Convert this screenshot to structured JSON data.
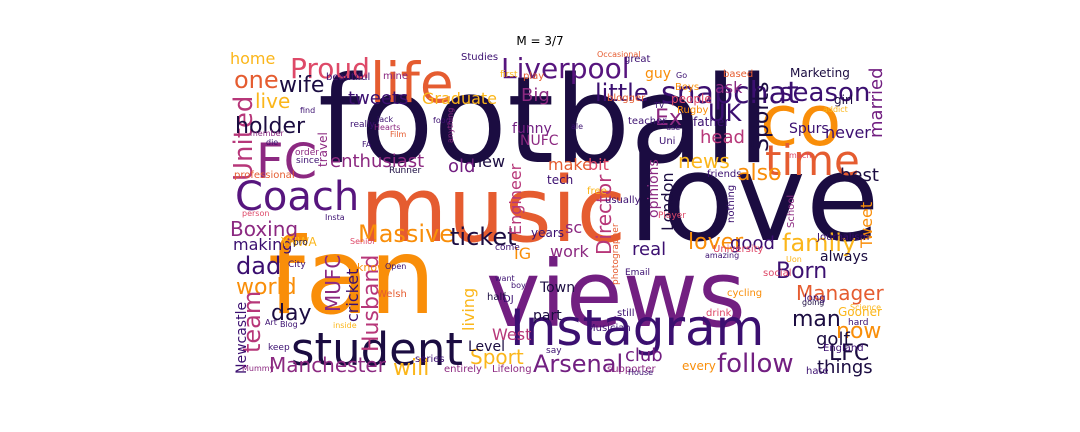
{
  "figure": {
    "title": "M = 3/7"
  },
  "palette": {
    "black": "#1b0c41",
    "deep_purple": "#3b0f70",
    "purple": "#57157e",
    "plum": "#721f81",
    "magenta": "#8c2981",
    "rose": "#b73779",
    "red": "#de4968",
    "orange_red": "#e55c30",
    "orange": "#f98e09",
    "gold": "#fbb61a",
    "yellow": "#f6d746"
  },
  "word_cloud": [
    {
      "text": "football",
      "color": "#1b0c41"
    },
    {
      "text": "love",
      "color": "#1b0c41"
    },
    {
      "text": "music",
      "color": "#e55c30"
    },
    {
      "text": "fan",
      "color": "#f98e09"
    },
    {
      "text": "views",
      "color": "#721f81"
    },
    {
      "text": "Instagram",
      "color": "#3b0f70"
    },
    {
      "text": "student",
      "color": "#1b0c41"
    },
    {
      "text": "Coach",
      "color": "#57157e"
    },
    {
      "text": "co",
      "color": "#f98e09"
    },
    {
      "text": "life",
      "color": "#e55c30"
    },
    {
      "text": "time",
      "color": "#e55c30"
    },
    {
      "text": "FC",
      "color": "#8c2981"
    },
    {
      "text": "snapchat",
      "color": "#3b0f70"
    },
    {
      "text": "Liverpool",
      "color": "#57157e"
    },
    {
      "text": "Proud",
      "color": "#de4968"
    },
    {
      "text": "season",
      "color": "#3b0f70"
    },
    {
      "text": "one",
      "color": "#e55c30"
    },
    {
      "text": "wife",
      "color": "#1b0c41"
    },
    {
      "text": "United",
      "color": "#b73779"
    },
    {
      "text": "live",
      "color": "#fbb61a"
    },
    {
      "text": "holder",
      "color": "#1b0c41"
    },
    {
      "text": "home",
      "color": "#fbb61a"
    },
    {
      "text": "tweets",
      "color": "#3b0f70"
    },
    {
      "text": "Graduate",
      "color": "#fbb61a"
    },
    {
      "text": "little",
      "color": "#3b0f70"
    },
    {
      "text": "Big",
      "color": "#8c2981"
    },
    {
      "text": "UK",
      "color": "#3b0f70"
    },
    {
      "text": "Ex",
      "color": "#8c2981"
    },
    {
      "text": "head",
      "color": "#b73779"
    },
    {
      "text": "Sports",
      "color": "#1b0c41"
    },
    {
      "text": "married",
      "color": "#721f81"
    },
    {
      "text": "never",
      "color": "#3b0f70"
    },
    {
      "text": "news",
      "color": "#fbb61a"
    },
    {
      "text": "also",
      "color": "#f98e09"
    },
    {
      "text": "best",
      "color": "#1b0c41"
    },
    {
      "text": "enthusiast",
      "color": "#8c2981"
    },
    {
      "text": "old",
      "color": "#721f81"
    },
    {
      "text": "new",
      "color": "#1b0c41"
    },
    {
      "text": "make",
      "color": "#e55c30"
    },
    {
      "text": "bit",
      "color": "#de4968"
    },
    {
      "text": "funny",
      "color": "#721f81"
    },
    {
      "text": "NUFC",
      "color": "#8c2981"
    },
    {
      "text": "Massive",
      "color": "#f98e09"
    },
    {
      "text": "ticket",
      "color": "#1b0c41"
    },
    {
      "text": "lover",
      "color": "#f98e09"
    },
    {
      "text": "good",
      "color": "#3b0f70"
    },
    {
      "text": "family",
      "color": "#fbb61a"
    },
    {
      "text": "Boxing",
      "color": "#8c2981"
    },
    {
      "text": "making",
      "color": "#3b0f70"
    },
    {
      "text": "dad",
      "color": "#3b0f70"
    },
    {
      "text": "world",
      "color": "#f98e09"
    },
    {
      "text": "day",
      "color": "#1b0c41"
    },
    {
      "text": "team",
      "color": "#b73779"
    },
    {
      "text": "MUFC",
      "color": "#8c2981"
    },
    {
      "text": "cricket",
      "color": "#3b0f70"
    },
    {
      "text": "Husband",
      "color": "#b73779"
    },
    {
      "text": "Born",
      "color": "#3b0f70"
    },
    {
      "text": "Manager",
      "color": "#e55c30"
    },
    {
      "text": "man",
      "color": "#1b0c41"
    },
    {
      "text": "now",
      "color": "#f98e09"
    },
    {
      "text": "golf",
      "color": "#1b0c41"
    },
    {
      "text": "LFC",
      "color": "#1b0c41"
    },
    {
      "text": "follow",
      "color": "#721f81"
    },
    {
      "text": "things",
      "color": "#1b0c41"
    },
    {
      "text": "Manchester",
      "color": "#8c2981"
    },
    {
      "text": "will",
      "color": "#fbb61a"
    },
    {
      "text": "Sport",
      "color": "#fbb61a"
    },
    {
      "text": "Arsenal",
      "color": "#721f81"
    },
    {
      "text": "club",
      "color": "#721f81"
    },
    {
      "text": "Newcastle",
      "color": "#3b0f70"
    },
    {
      "text": "Director",
      "color": "#b73779"
    },
    {
      "text": "Engineer",
      "color": "#b73779"
    },
    {
      "text": "London",
      "color": "#1b0c41"
    },
    {
      "text": "opinions",
      "color": "#8c2981"
    },
    {
      "text": "Tweet",
      "color": "#f98e09"
    },
    {
      "text": "Spurs",
      "color": "#3b0f70"
    },
    {
      "text": "girl",
      "color": "#1b0c41"
    },
    {
      "text": "Marketing",
      "color": "#1b0c41"
    },
    {
      "text": "ask",
      "color": "#8c2981"
    },
    {
      "text": "guy",
      "color": "#f98e09"
    },
    {
      "text": "people",
      "color": "#de4968"
    },
    {
      "text": "father",
      "color": "#3b0f70"
    },
    {
      "text": "sc",
      "color": "#8c2981"
    },
    {
      "text": "IG",
      "color": "#f98e09"
    },
    {
      "text": "work",
      "color": "#8c2981"
    },
    {
      "text": "years",
      "color": "#3b0f70"
    },
    {
      "text": "real",
      "color": "#3b0f70"
    },
    {
      "text": "living",
      "color": "#fbb61a"
    },
    {
      "text": "West",
      "color": "#b73779"
    },
    {
      "text": "Level",
      "color": "#1b0c41"
    },
    {
      "text": "part",
      "color": "#1b0c41"
    },
    {
      "text": "Town",
      "color": "#1b0c41"
    },
    {
      "text": "tech",
      "color": "#3b0f70"
    },
    {
      "text": "always",
      "color": "#1b0c41"
    },
    {
      "text": "travel",
      "color": "#8c2981"
    },
    {
      "text": "every",
      "color": "#f98e09"
    },
    {
      "text": "supporter",
      "color": "#8c2981"
    },
    {
      "text": "Lifelong",
      "color": "#8c2981"
    },
    {
      "text": "Musician",
      "color": "#3b0f70"
    },
    {
      "text": "entirely",
      "color": "#8c2981"
    },
    {
      "text": "series",
      "color": "#3b0f70"
    },
    {
      "text": "School",
      "color": "#8c2981"
    },
    {
      "text": "Journalism",
      "color": "#3b0f70"
    },
    {
      "text": "England",
      "color": "#3b0f70"
    },
    {
      "text": "hate",
      "color": "#3b0f70"
    },
    {
      "text": "YNWA",
      "color": "#fbb61a"
    },
    {
      "text": "professional",
      "color": "#e55c30"
    },
    {
      "text": "Studies",
      "color": "#3b0f70"
    },
    {
      "text": "beautiful",
      "color": "#3b0f70"
    },
    {
      "text": "mine",
      "color": "#8c2981"
    },
    {
      "text": "Boys",
      "color": "#f98e09"
    },
    {
      "text": "blogger",
      "color": "#e55c30"
    },
    {
      "text": "teacher",
      "color": "#3b0f70"
    },
    {
      "text": "Uni",
      "color": "#3b0f70"
    },
    {
      "text": "friends",
      "color": "#3b0f70"
    },
    {
      "text": "University",
      "color": "#de4968"
    },
    {
      "text": "amazing",
      "color": "#3b0f70"
    },
    {
      "text": "social",
      "color": "#de4968"
    },
    {
      "text": "cycling",
      "color": "#f98e09"
    },
    {
      "text": "Gooner",
      "color": "#fbb61a"
    },
    {
      "text": "Welsh",
      "color": "#e55c30"
    },
    {
      "text": "Occasional",
      "color": "#e55c30"
    },
    {
      "text": "great",
      "color": "#3b0f70"
    },
    {
      "text": "first",
      "color": "#fbb61a"
    },
    {
      "text": "play",
      "color": "#e55c30"
    },
    {
      "text": "Rugby",
      "color": "#f98e09"
    },
    {
      "text": "based",
      "color": "#e55c30"
    },
    {
      "text": "addict",
      "color": "#fbb61a"
    },
    {
      "text": "much",
      "color": "#de4968"
    },
    {
      "text": "Player",
      "color": "#de4968"
    },
    {
      "text": "nothing",
      "color": "#3b0f70"
    },
    {
      "text": "usually",
      "color": "#3b0f70"
    },
    {
      "text": "Email",
      "color": "#3b0f70"
    },
    {
      "text": "half",
      "color": "#1b0c41"
    },
    {
      "text": "still",
      "color": "#3b0f70"
    },
    {
      "text": "drink",
      "color": "#de4968"
    },
    {
      "text": "going",
      "color": "#1b0c41"
    },
    {
      "text": "long",
      "color": "#3b0f70"
    },
    {
      "text": "know",
      "color": "#f98e09"
    },
    {
      "text": "City",
      "color": "#3b0f70"
    },
    {
      "text": "Open",
      "color": "#3b0f70"
    },
    {
      "text": "Senior",
      "color": "#de4968"
    },
    {
      "text": "come",
      "color": "#3b0f70"
    },
    {
      "text": "want",
      "color": "#3b0f70"
    },
    {
      "text": "boy",
      "color": "#3b0f70"
    },
    {
      "text": "say",
      "color": "#3b0f70"
    },
    {
      "text": "DJ",
      "color": "#3b0f70"
    },
    {
      "text": "Mummy",
      "color": "#8c2981"
    },
    {
      "text": "keep",
      "color": "#3b0f70"
    },
    {
      "text": "Blog",
      "color": "#3b0f70"
    },
    {
      "text": "Art",
      "color": "#3b0f70"
    },
    {
      "text": "inside",
      "color": "#fbb61a"
    },
    {
      "text": "pro",
      "color": "#1b0c41"
    },
    {
      "text": "Insta",
      "color": "#3b0f70"
    },
    {
      "text": "person",
      "color": "#de4968"
    },
    {
      "text": "Runner",
      "color": "#1b0c41"
    },
    {
      "text": "order",
      "color": "#8c2981"
    },
    {
      "text": "since",
      "color": "#3b0f70"
    },
    {
      "text": "die",
      "color": "#3b0f70"
    },
    {
      "text": "member",
      "color": "#8c2981"
    },
    {
      "text": "find",
      "color": "#3b0f70"
    },
    {
      "text": "really",
      "color": "#3b0f70"
    },
    {
      "text": "jack",
      "color": "#3b0f70"
    },
    {
      "text": "Hearts",
      "color": "#8c2981"
    },
    {
      "text": "Film",
      "color": "#e55c30"
    },
    {
      "text": "food",
      "color": "#3b0f70"
    },
    {
      "text": "FA",
      "color": "#3b0f70"
    },
    {
      "text": "anything",
      "color": "#8c2981"
    },
    {
      "text": "ale",
      "color": "#3b0f70"
    },
    {
      "text": "use",
      "color": "#3b0f70"
    },
    {
      "text": "Go",
      "color": "#3b0f70"
    },
    {
      "text": "TV",
      "color": "#3b0f70"
    },
    {
      "text": "House",
      "color": "#3b0f70"
    },
    {
      "text": "photographer",
      "color": "#e55c30"
    },
    {
      "text": "free",
      "color": "#fbb61a"
    },
    {
      "text": "Uon",
      "color": "#fbb61a"
    },
    {
      "text": "hard",
      "color": "#3b0f70"
    },
    {
      "text": "Science",
      "color": "#fbb61a"
    }
  ]
}
